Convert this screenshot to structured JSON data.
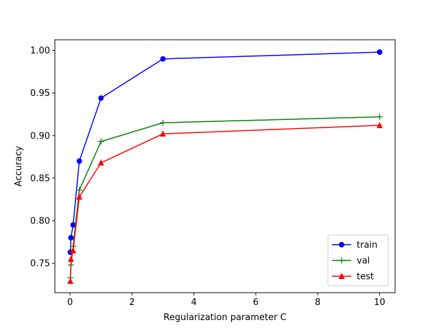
{
  "chart_data": {
    "type": "line",
    "xlabel": "Regularization parameter C",
    "ylabel": "Accuracy",
    "x": [
      0.01,
      0.03,
      0.1,
      0.3,
      1,
      3,
      10
    ],
    "xlim": [
      -0.49,
      10.5
    ],
    "ylim": [
      0.7155,
      1.0125
    ],
    "xticks": [
      0,
      2,
      4,
      6,
      8,
      10
    ],
    "yticks": [
      0.75,
      0.8,
      0.85,
      0.9,
      0.95,
      1.0
    ],
    "xtick_labels": [
      "0",
      "2",
      "4",
      "6",
      "8",
      "10"
    ],
    "ytick_labels": [
      "0.75",
      "0.80",
      "0.85",
      "0.90",
      "0.95",
      "1.00"
    ],
    "grid": false,
    "legend_position": "lower-right",
    "series": [
      {
        "name": "train",
        "color": "#0000ff",
        "marker": "circle",
        "values": [
          0.763,
          0.78,
          0.795,
          0.87,
          0.944,
          0.99,
          0.998
        ]
      },
      {
        "name": "val",
        "color": "#008000",
        "marker": "plus",
        "values": [
          0.733,
          0.748,
          0.77,
          0.836,
          0.893,
          0.915,
          0.922
        ]
      },
      {
        "name": "test",
        "color": "#ff0000",
        "marker": "triangle",
        "values": [
          0.729,
          0.755,
          0.765,
          0.828,
          0.868,
          0.902,
          0.912
        ]
      }
    ]
  }
}
